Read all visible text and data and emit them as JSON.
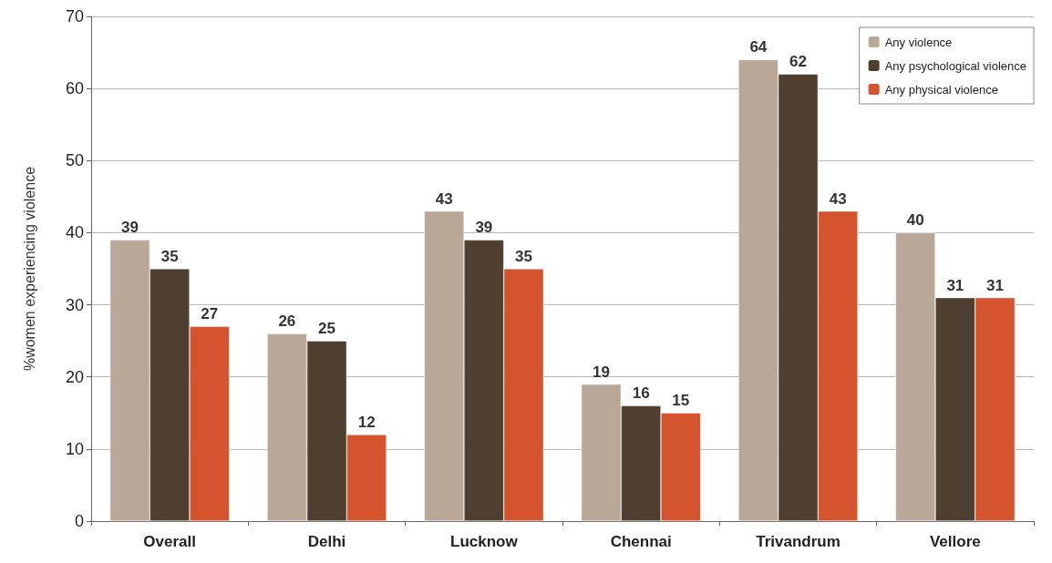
{
  "chart_data": {
    "type": "bar",
    "ylabel": "%women experiencing violence",
    "categories": [
      "Overall",
      "Delhi",
      "Lucknow",
      "Chennai",
      "Trivandrum",
      "Vellore"
    ],
    "series": [
      {
        "name": "Any violence",
        "color": "#b9a897",
        "values": [
          39,
          26,
          43,
          19,
          64,
          40
        ]
      },
      {
        "name": "Any psychological violence",
        "color": "#4e3f30",
        "values": [
          35,
          25,
          39,
          16,
          62,
          31
        ]
      },
      {
        "name": "Any physical violence",
        "color": "#d4552d",
        "values": [
          27,
          12,
          35,
          15,
          43,
          31
        ]
      }
    ],
    "ylim": [
      0,
      70
    ],
    "yticks": [
      0,
      10,
      20,
      30,
      40,
      50,
      60,
      70
    ],
    "grid": "y",
    "legend": "top right",
    "data_labels": true
  }
}
